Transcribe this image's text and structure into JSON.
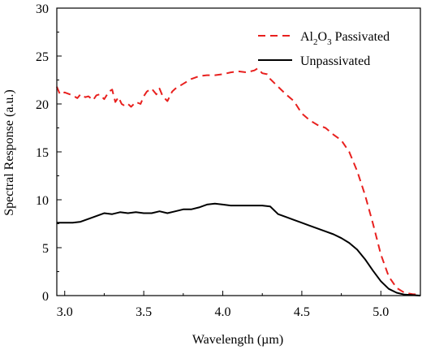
{
  "chart_data": {
    "type": "line",
    "title": "",
    "xlabel": "Wavelength (µm)",
    "ylabel": "Spectral Response (a.u.)",
    "xlim": [
      2.95,
      5.25
    ],
    "ylim": [
      0,
      30
    ],
    "xticks": [
      "3.0",
      "3.5",
      "4.0",
      "4.5",
      "5.0"
    ],
    "xtick_values": [
      3.0,
      3.5,
      4.0,
      4.5,
      5.0
    ],
    "yticks": [
      "0",
      "5",
      "10",
      "15",
      "20",
      "25",
      "30"
    ],
    "ytick_values": [
      0,
      5,
      10,
      15,
      20,
      25,
      30
    ],
    "grid": false,
    "legend_position": "top-right",
    "series": [
      {
        "name": "Al2O3 Passivated",
        "legend": {
          "base": "Al",
          "sub1": "2",
          "mid": "O",
          "sub2": "3",
          "rest": " Passivated"
        },
        "color": "#e8201e",
        "style": "dashed",
        "x": [
          2.95,
          2.97,
          3.0,
          3.05,
          3.08,
          3.1,
          3.13,
          3.15,
          3.18,
          3.2,
          3.22,
          3.25,
          3.28,
          3.3,
          3.32,
          3.34,
          3.36,
          3.38,
          3.4,
          3.42,
          3.45,
          3.48,
          3.5,
          3.52,
          3.55,
          3.58,
          3.6,
          3.62,
          3.65,
          3.68,
          3.7,
          3.75,
          3.8,
          3.85,
          3.9,
          3.95,
          4.0,
          4.05,
          4.1,
          4.15,
          4.2,
          4.22,
          4.25,
          4.28,
          4.3,
          4.35,
          4.4,
          4.45,
          4.5,
          4.55,
          4.6,
          4.65,
          4.7,
          4.75,
          4.8,
          4.85,
          4.9,
          4.95,
          5.0,
          5.05,
          5.1,
          5.15,
          5.2,
          5.25
        ],
        "y": [
          21.8,
          21.0,
          21.2,
          20.9,
          20.6,
          21.0,
          20.7,
          20.8,
          20.4,
          20.9,
          21.0,
          20.5,
          21.3,
          21.5,
          20.2,
          20.7,
          20.0,
          19.8,
          20.0,
          19.7,
          20.2,
          20.0,
          20.8,
          21.3,
          21.6,
          21.0,
          21.6,
          20.8,
          20.3,
          21.3,
          21.6,
          22.1,
          22.6,
          22.9,
          23.0,
          23.0,
          23.1,
          23.3,
          23.4,
          23.3,
          23.5,
          23.7,
          23.2,
          23.1,
          22.6,
          21.8,
          21.0,
          20.3,
          19.0,
          18.3,
          17.8,
          17.5,
          16.8,
          16.2,
          15.0,
          13.0,
          10.5,
          7.5,
          4.3,
          2.0,
          0.8,
          0.3,
          0.15,
          0.1
        ]
      },
      {
        "name": "Unpassivated",
        "color": "#000000",
        "style": "solid",
        "x": [
          2.95,
          3.0,
          3.05,
          3.1,
          3.15,
          3.2,
          3.25,
          3.3,
          3.35,
          3.4,
          3.45,
          3.5,
          3.55,
          3.6,
          3.65,
          3.7,
          3.75,
          3.8,
          3.85,
          3.9,
          3.95,
          4.0,
          4.05,
          4.1,
          4.15,
          4.2,
          4.25,
          4.3,
          4.35,
          4.4,
          4.45,
          4.5,
          4.55,
          4.6,
          4.65,
          4.7,
          4.75,
          4.8,
          4.85,
          4.9,
          4.95,
          5.0,
          5.05,
          5.1,
          5.15,
          5.2,
          5.25
        ],
        "y": [
          7.6,
          7.6,
          7.6,
          7.7,
          8.0,
          8.3,
          8.6,
          8.5,
          8.7,
          8.6,
          8.7,
          8.6,
          8.6,
          8.8,
          8.6,
          8.8,
          9.0,
          9.0,
          9.2,
          9.5,
          9.6,
          9.5,
          9.4,
          9.4,
          9.4,
          9.4,
          9.4,
          9.3,
          8.5,
          8.2,
          7.9,
          7.6,
          7.3,
          7.0,
          6.7,
          6.4,
          6.0,
          5.5,
          4.8,
          3.8,
          2.6,
          1.5,
          0.7,
          0.3,
          0.1,
          0.05,
          0.0
        ]
      }
    ]
  }
}
